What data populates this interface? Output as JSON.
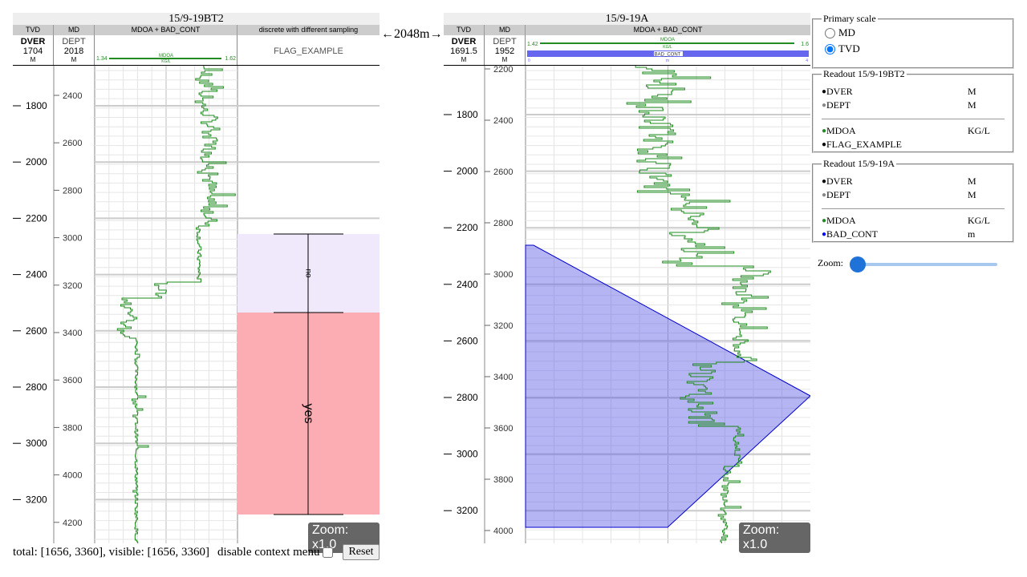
{
  "wells": [
    {
      "title": "15/9-19BT2",
      "headers": [
        "TVD",
        "MD",
        "MDOA + BAD_CONT",
        "discrete with different sampling"
      ],
      "tvd": {
        "name": "DVER",
        "value": "1704",
        "unit": "M"
      },
      "md": {
        "name": "DEPT",
        "value": "2018",
        "unit": "M"
      },
      "curve": {
        "name": "MDOA",
        "unit": "KG/L",
        "min": "1.34",
        "max": "1.62",
        "color": "#228b22"
      },
      "flag_label": "FLAG_EXAMPLE",
      "flag_values": [
        {
          "label": "no",
          "color": "#efe9fb"
        },
        {
          "label": "yes",
          "color": "#fbadb3"
        }
      ],
      "tvd_ticks": [
        "1800",
        "2000",
        "2200",
        "2400",
        "2600",
        "2800",
        "3000",
        "3200"
      ],
      "md_ticks": [
        "2400",
        "2600",
        "2800",
        "3000",
        "3200",
        "3400",
        "3600",
        "3800",
        "4000",
        "4200"
      ],
      "zoom": "Zoom: x1.0"
    },
    {
      "title": "15/9-19A",
      "headers": [
        "TVD",
        "MD",
        "MDOA + BAD_CONT"
      ],
      "tvd": {
        "name": "DVER",
        "value": "1691.5",
        "unit": "M"
      },
      "md": {
        "name": "DEPT",
        "value": "1952",
        "unit": "M"
      },
      "curve": {
        "name": "MDOA",
        "unit": "KG/L",
        "min": "1.42",
        "max": "1.6",
        "color": "#228b22"
      },
      "curve2": {
        "name": "BAD_CONT",
        "unit": "m",
        "min": "0",
        "max": "4",
        "color": "#6666ee"
      },
      "tvd_ticks": [
        "1800",
        "2000",
        "2200",
        "2400",
        "2600",
        "2800",
        "3000",
        "3200"
      ],
      "md_ticks": [
        "2200",
        "2400",
        "2600",
        "2800",
        "3000",
        "3200",
        "3400",
        "3600",
        "3800",
        "4000"
      ],
      "zoom": "Zoom: x1.0"
    }
  ],
  "between_label": "←2048m→",
  "primary_scale": {
    "legend": "Primary scale",
    "options": [
      "MD",
      "TVD"
    ],
    "selected": "TVD"
  },
  "readouts": [
    {
      "legend": "Readout 15/9-19BT2",
      "rows1": [
        {
          "name": "DVER",
          "unit": "M",
          "color": "#000"
        },
        {
          "name": "DEPT",
          "unit": "M",
          "color": "#888"
        }
      ],
      "rows2": [
        {
          "name": "MDOA",
          "unit": "KG/L",
          "color": "#228b22"
        },
        {
          "name": "FLAG_EXAMPLE",
          "unit": "",
          "color": "#000"
        }
      ]
    },
    {
      "legend": "Readout 15/9-19A",
      "rows1": [
        {
          "name": "DVER",
          "unit": "M",
          "color": "#000"
        },
        {
          "name": "DEPT",
          "unit": "M",
          "color": "#888"
        }
      ],
      "rows2": [
        {
          "name": "MDOA",
          "unit": "KG/L",
          "color": "#228b22"
        },
        {
          "name": "BAD_CONT",
          "unit": "m",
          "color": "#00f"
        }
      ]
    }
  ],
  "zoom_label": "Zoom:",
  "status_text": "total: [1656, 3360], visible: [1656, 3360]",
  "context_menu_label": "disable context menu",
  "reset_label": "Reset"
}
